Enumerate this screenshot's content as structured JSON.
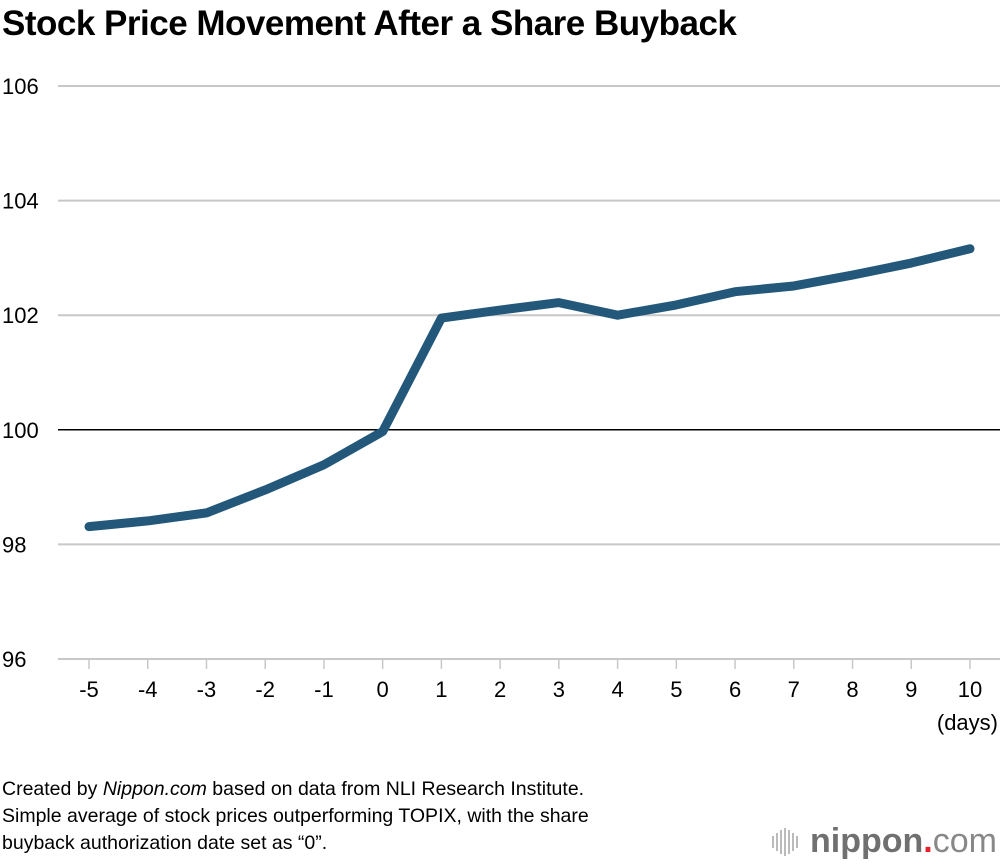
{
  "chart_data": {
    "type": "line",
    "title": "Stock Price Movement After a Share Buyback",
    "xlabel": "(days)",
    "ylabel": "",
    "x": [
      -5,
      -4,
      -3,
      -2,
      -1,
      0,
      1,
      2,
      3,
      4,
      5,
      6,
      7,
      8,
      9,
      10
    ],
    "series": [
      {
        "values": [
          98.31,
          98.41,
          98.55,
          98.95,
          99.39,
          99.97,
          101.95,
          102.09,
          102.22,
          102.0,
          102.18,
          102.41,
          102.51,
          102.7,
          102.91,
          103.16
        ]
      }
    ],
    "ylim": [
      96,
      106
    ],
    "yticks": [
      "96",
      "98",
      "100",
      "102",
      "104",
      "106"
    ],
    "xticks": [
      "-5",
      "-4",
      "-3",
      "-2",
      "-1",
      "0",
      "1",
      "2",
      "3",
      "4",
      "5",
      "6",
      "7",
      "8",
      "9",
      "10"
    ],
    "baseline": 100,
    "grid": true,
    "line_color": "#23587a",
    "grid_color": "#c8c8c8"
  },
  "footer": {
    "line1_pre": "Created by ",
    "line1_source": "Nippon.com",
    "line1_post": " based on data from NLI Research Institute.",
    "line2": "Simple average of stock prices outperforming TOPIX, with the share",
    "line3": "buyback authorization date set as “0”."
  },
  "logo": {
    "name": "nippon",
    "dot": ".",
    "suffix": "com"
  }
}
